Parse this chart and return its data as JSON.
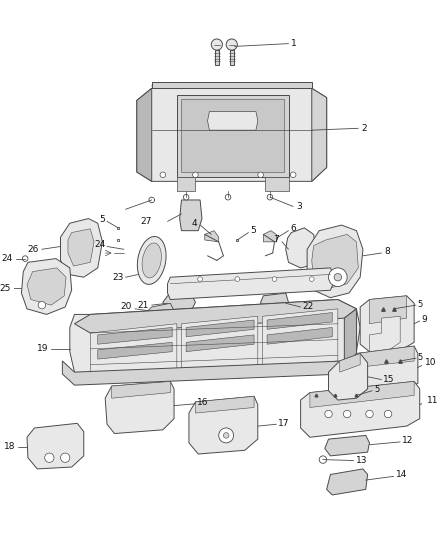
{
  "bg_color": "#ffffff",
  "line_color": "#4a4a4a",
  "fill_light": "#e8e8e8",
  "fill_mid": "#d4d4d4",
  "fill_dark": "#b8b8b8",
  "figsize": [
    4.38,
    5.33
  ],
  "dpi": 100,
  "label_fs": 6.5,
  "lw": 0.7
}
